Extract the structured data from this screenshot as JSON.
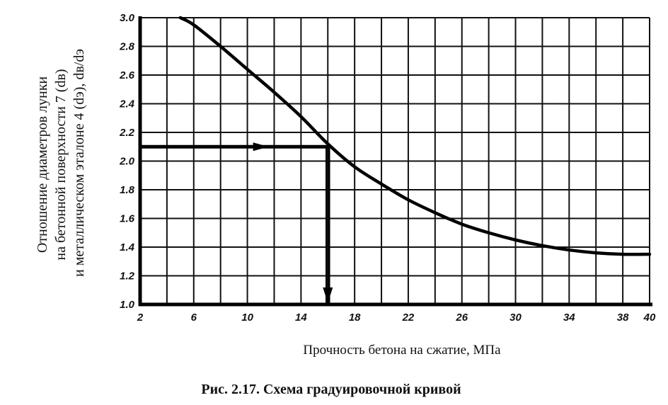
{
  "chart_data": {
    "type": "line",
    "xlabel": "Прочность бетона на сжатие, МПа",
    "ylabel_lines": [
      "Отношение диаметров лунки",
      "на бетонной поверхности 7 (dв)",
      "и металлическом эталоне 4 (dэ), dв/dэ"
    ],
    "caption": "Рис. 2.17. Схема градуировочной кривой",
    "xlim": [
      2,
      40
    ],
    "ylim": [
      1.0,
      3.0
    ],
    "x_tick_labels": [
      "2",
      "6",
      "10",
      "14",
      "18",
      "22",
      "26",
      "30",
      "34",
      "38",
      "40"
    ],
    "x_tick_values": [
      2,
      6,
      10,
      14,
      18,
      22,
      26,
      30,
      34,
      38,
      40
    ],
    "y_tick_labels": [
      "1.0",
      "1.2",
      "1.4",
      "1.6",
      "1.8",
      "2.0",
      "2.2",
      "2.4",
      "2.6",
      "2.8",
      "3.0"
    ],
    "y_tick_values": [
      1.0,
      1.2,
      1.4,
      1.6,
      1.8,
      2.0,
      2.2,
      2.4,
      2.6,
      2.8,
      3.0
    ],
    "grid": true,
    "grid_x_step": 2,
    "grid_y_step": 0.2,
    "series": [
      {
        "x": [
          5.0,
          6.0,
          8.0,
          10.0,
          12.0,
          14.0,
          16.0,
          18.0,
          20.0,
          22.0,
          24.0,
          26.0,
          28.0,
          30.0,
          32.0,
          34.0,
          36.0,
          38.0,
          40.0
        ],
        "y": [
          3.0,
          2.95,
          2.8,
          2.64,
          2.48,
          2.31,
          2.12,
          1.96,
          1.84,
          1.73,
          1.64,
          1.56,
          1.5,
          1.45,
          1.41,
          1.38,
          1.36,
          1.35,
          1.35
        ]
      }
    ],
    "annotations": [
      {
        "type": "arrow-horizontal",
        "from": [
          2,
          2.1
        ],
        "to": [
          16,
          2.1
        ]
      },
      {
        "type": "arrow-vertical",
        "from": [
          16,
          2.1
        ],
        "to": [
          16,
          1.0
        ]
      }
    ]
  }
}
